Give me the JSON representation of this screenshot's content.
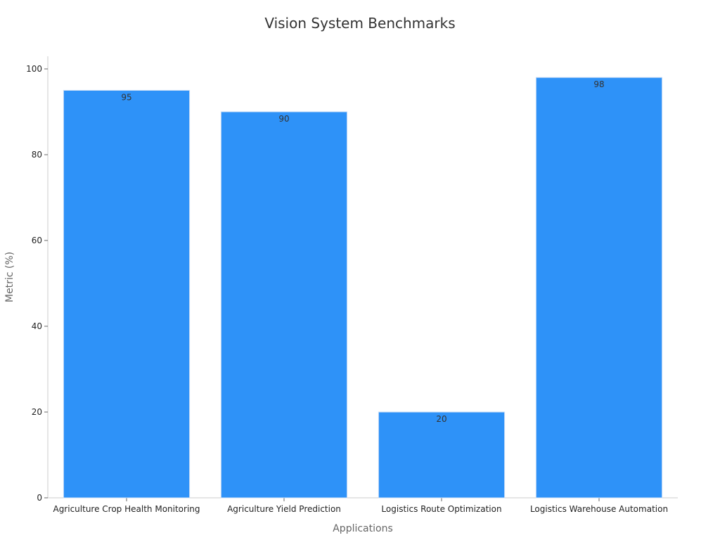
{
  "chart_data": {
    "type": "bar",
    "title": "Vision System Benchmarks",
    "xlabel": "Applications",
    "ylabel": "Metric (%)",
    "categories": [
      "Agriculture Crop Health Monitoring",
      "Agriculture Yield Prediction",
      "Logistics Route Optimization",
      "Logistics Warehouse Automation"
    ],
    "values": [
      95,
      90,
      20,
      98
    ],
    "data_labels": [
      "95",
      "90",
      "20",
      "98"
    ],
    "ylim": [
      0,
      100
    ],
    "yticks": [
      0,
      20,
      40,
      60,
      80,
      100
    ],
    "ytick_labels": [
      "0",
      "20",
      "40",
      "60",
      "80",
      "100"
    ],
    "bar_color": "#2e92f8",
    "grid": false,
    "legend": "none"
  }
}
